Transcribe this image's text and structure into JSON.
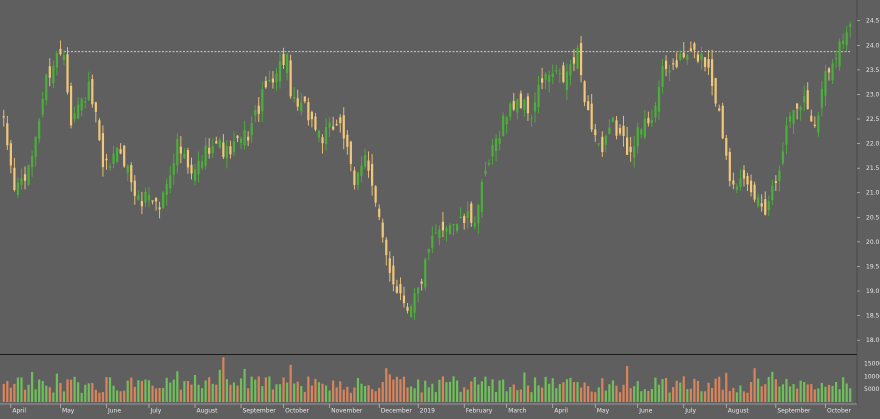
{
  "chart_data": [
    {
      "type": "candlestick",
      "title": "",
      "xlabel": "",
      "ylabel": "",
      "ylim": [
        17.8,
        24.8
      ],
      "yticks": [
        "18.0",
        "18.5",
        "19.0",
        "19.5",
        "20.0",
        "20.5",
        "21.0",
        "21.5",
        "22.0",
        "22.5",
        "23.0",
        "23.5",
        "24.0",
        "24.5"
      ],
      "reference_line": 23.87,
      "up_color": "#4caf3a",
      "down_color": "#f3c77a",
      "path_anchors": [
        [
          0,
          22.4
        ],
        [
          3,
          21.1
        ],
        [
          7,
          21.4
        ],
        [
          12,
          23.3
        ],
        [
          15,
          23.8
        ],
        [
          17,
          23.9
        ],
        [
          19,
          22.5
        ],
        [
          24,
          23.1
        ],
        [
          26,
          22.5
        ],
        [
          28,
          21.4
        ],
        [
          33,
          21.9
        ],
        [
          38,
          20.8
        ],
        [
          41,
          21.0
        ],
        [
          44,
          20.7
        ],
        [
          49,
          22.0
        ],
        [
          53,
          21.3
        ],
        [
          59,
          22.1
        ],
        [
          63,
          21.8
        ],
        [
          69,
          22.2
        ],
        [
          75,
          23.3
        ],
        [
          80,
          23.8
        ],
        [
          81,
          22.8
        ],
        [
          85,
          22.7
        ],
        [
          90,
          22.1
        ],
        [
          95,
          22.5
        ],
        [
          99,
          21.1
        ],
        [
          102,
          21.9
        ],
        [
          104,
          21.1
        ],
        [
          107,
          20.0
        ],
        [
          110,
          19.2
        ],
        [
          114,
          18.7
        ],
        [
          117,
          19.0
        ],
        [
          121,
          20.0
        ],
        [
          125,
          20.4
        ],
        [
          129,
          20.4
        ],
        [
          133,
          20.5
        ],
        [
          137,
          21.6
        ],
        [
          141,
          22.5
        ],
        [
          145,
          22.9
        ],
        [
          149,
          22.6
        ],
        [
          152,
          23.3
        ],
        [
          155,
          23.4
        ],
        [
          158,
          23.3
        ],
        [
          162,
          23.8
        ],
        [
          165,
          22.6
        ],
        [
          169,
          21.8
        ],
        [
          172,
          22.4
        ],
        [
          176,
          21.9
        ],
        [
          179,
          22.2
        ],
        [
          183,
          22.6
        ],
        [
          186,
          23.4
        ],
        [
          189,
          23.6
        ],
        [
          193,
          23.8
        ],
        [
          196,
          23.8
        ],
        [
          199,
          23.6
        ],
        [
          202,
          22.6
        ],
        [
          205,
          21.4
        ],
        [
          208,
          21.2
        ],
        [
          212,
          20.9
        ],
        [
          215,
          20.7
        ],
        [
          218,
          21.3
        ],
        [
          222,
          22.6
        ],
        [
          226,
          22.9
        ],
        [
          229,
          22.4
        ],
        [
          232,
          23.4
        ],
        [
          235,
          23.9
        ],
        [
          238,
          24.3
        ]
      ],
      "ohlc_note": "",
      "volume": {
        "yticks": [
          "5000",
          "10000",
          "15000"
        ],
        "max": 17500
      },
      "xticks": [
        {
          "label": "April",
          "bar": 2
        },
        {
          "label": "May",
          "bar": 16
        },
        {
          "label": "June",
          "bar": 29
        },
        {
          "label": "July",
          "bar": 41
        },
        {
          "label": "August",
          "bar": 54
        },
        {
          "label": "September",
          "bar": 67
        },
        {
          "label": "October",
          "bar": 79
        },
        {
          "label": "November",
          "bar": 92
        },
        {
          "label": "December",
          "bar": 106
        },
        {
          "label": "2019",
          "bar": 117
        },
        {
          "label": "February",
          "bar": 130
        },
        {
          "label": "March",
          "bar": 142
        },
        {
          "label": "April",
          "bar": 155
        },
        {
          "label": "May",
          "bar": 167
        },
        {
          "label": "June",
          "bar": 179
        },
        {
          "label": "July",
          "bar": 192
        },
        {
          "label": "August",
          "bar": 204
        },
        {
          "label": "September",
          "bar": 218
        },
        {
          "label": "October",
          "bar": 232
        }
      ],
      "grid": false,
      "legend": "none",
      "n_bars": 240
    }
  ]
}
